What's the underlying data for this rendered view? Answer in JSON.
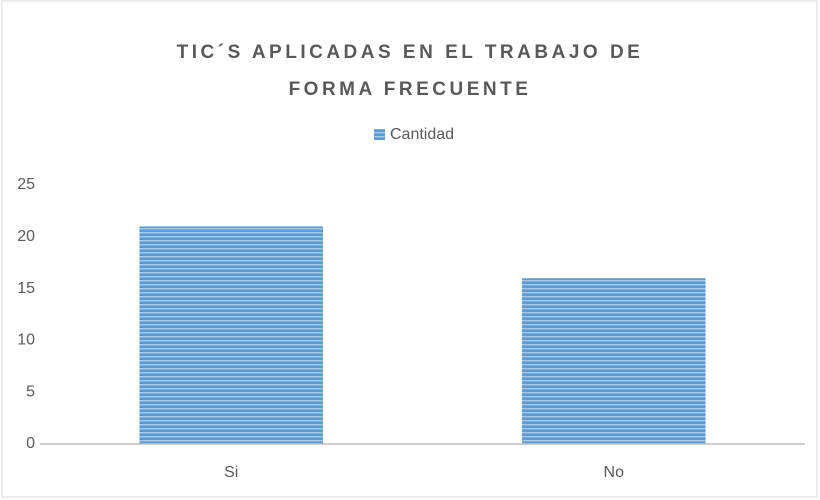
{
  "chart_data": {
    "type": "bar",
    "title": "TIC´S APLICADAS EN EL TRABAJO DE FORMA FRECUENTE",
    "categories": [
      "Si",
      "No"
    ],
    "series": [
      {
        "name": "Cantidad",
        "color": "#5b9bd5",
        "values": [
          21,
          16
        ]
      }
    ],
    "ylim": [
      0,
      25
    ],
    "yticks": [
      0,
      5,
      10,
      15,
      20,
      25
    ],
    "grid": false,
    "legend": "top"
  }
}
